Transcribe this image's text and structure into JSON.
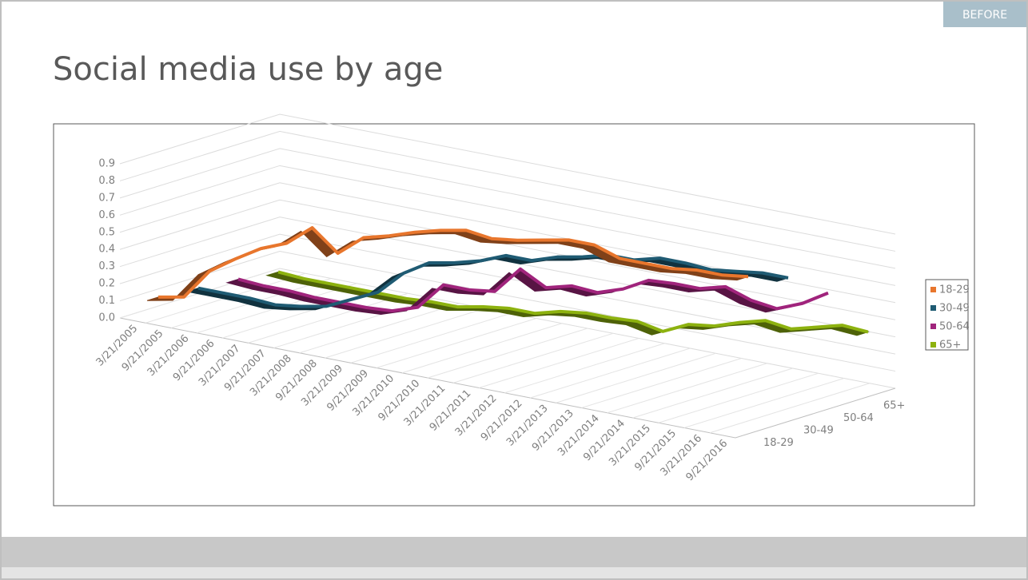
{
  "badge": "BEFORE",
  "chart_data": {
    "type": "line3d",
    "title": "Social media use by age",
    "x": [
      "3/21/2005",
      "9/21/2005",
      "3/21/2006",
      "9/21/2006",
      "3/21/2007",
      "9/21/2007",
      "3/21/2008",
      "9/21/2008",
      "3/21/2009",
      "9/21/2009",
      "3/21/2010",
      "9/21/2010",
      "3/21/2011",
      "9/21/2011",
      "3/21/2012",
      "9/21/2012",
      "3/21/2013",
      "9/21/2013",
      "3/21/2014",
      "9/21/2014",
      "3/21/2015",
      "9/21/2015",
      "3/21/2016",
      "9/21/2016"
    ],
    "series": [
      {
        "name": "18-29",
        "color": "#e8762d",
        "values": [
          0.09,
          0.12,
          0.3,
          0.4,
          0.49,
          0.55,
          0.67,
          0.55,
          0.67,
          0.71,
          0.76,
          0.8,
          0.83,
          0.81,
          0.83,
          0.86,
          0.89,
          0.89,
          0.84,
          0.84,
          0.84,
          0.86,
          0.86,
          0.88
        ]
      },
      {
        "name": "30-49",
        "color": "#1f5b73",
        "values": [
          0.07,
          0.07,
          0.07,
          0.06,
          0.08,
          0.11,
          0.18,
          0.25,
          0.39,
          0.48,
          0.51,
          0.55,
          0.61,
          0.61,
          0.66,
          0.69,
          0.73,
          0.73,
          0.77,
          0.77,
          0.76,
          0.78,
          0.8,
          0.8
        ]
      },
      {
        "name": "50-64",
        "color": "#a0247c",
        "values": [
          0.05,
          0.04,
          0.04,
          0.03,
          0.03,
          0.03,
          0.04,
          0.09,
          0.25,
          0.25,
          0.27,
          0.43,
          0.35,
          0.39,
          0.38,
          0.43,
          0.51,
          0.52,
          0.52,
          0.56,
          0.51,
          0.49,
          0.55,
          0.64
        ]
      },
      {
        "name": "65+",
        "color": "#8db20f",
        "values": [
          0.02,
          0.01,
          0.01,
          0.01,
          0.01,
          0.01,
          0.02,
          0.02,
          0.05,
          0.07,
          0.07,
          0.11,
          0.13,
          0.13,
          0.14,
          0.11,
          0.18,
          0.2,
          0.25,
          0.29,
          0.27,
          0.31,
          0.35,
          0.34
        ]
      }
    ],
    "ylim": [
      0,
      0.9
    ],
    "yticks": [
      {
        "value": 0,
        "label": "0.0"
      },
      0.1,
      0.2,
      0.3,
      0.4,
      0.5,
      0.6,
      0.7,
      0.8,
      0.9
    ],
    "grid": true,
    "legend": "right"
  }
}
